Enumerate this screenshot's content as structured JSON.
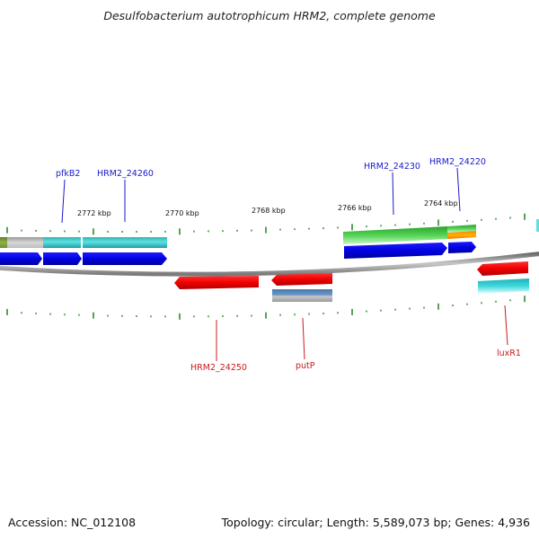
{
  "title": "Desulfobacterium autotrophicum HRM2, complete genome",
  "accession": "Accession: NC_012108",
  "stats": "Topology: circular; Length: 5,589,073 bp; Genes: 4,936",
  "colors": {
    "forward_label": "#1a1acc",
    "reverse_label": "#cc1a1a",
    "tick": "#2e8b2e",
    "backbone": "#8a8a8a"
  },
  "ticks": [
    {
      "label": "2772 kbp"
    },
    {
      "label": "2770 kbp"
    },
    {
      "label": "2768 kbp"
    },
    {
      "label": "2766 kbp"
    },
    {
      "label": "2764 kbp"
    }
  ],
  "gene_labels": [
    {
      "name": "pfkB2",
      "strand": "forward"
    },
    {
      "name": "HRM2_24260",
      "strand": "forward"
    },
    {
      "name": "HRM2_24230",
      "strand": "forward"
    },
    {
      "name": "HRM2_24220",
      "strand": "forward"
    },
    {
      "name": "HRM2_24250",
      "strand": "reverse"
    },
    {
      "name": "putP",
      "strand": "reverse"
    },
    {
      "name": "luxR1",
      "strand": "reverse"
    }
  ]
}
